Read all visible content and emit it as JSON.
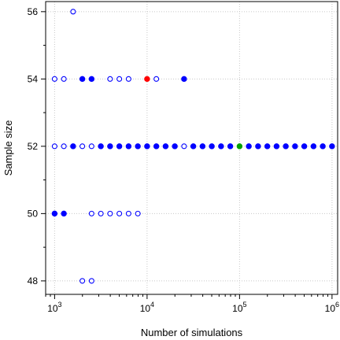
{
  "chart_data": {
    "type": "scatter",
    "title": "",
    "xlabel": "Number of simulations",
    "ylabel": "Sample size",
    "x_scale": "log10",
    "xlim": [
      800,
      1150000
    ],
    "ylim": [
      47.6,
      56.3
    ],
    "grid": true,
    "x_ticks": [
      {
        "value": 1000,
        "base": "10",
        "exp": "3"
      },
      {
        "value": 10000,
        "base": "10",
        "exp": "4"
      },
      {
        "value": 100000,
        "base": "10",
        "exp": "5"
      },
      {
        "value": 1000000,
        "base": "10",
        "exp": "6"
      }
    ],
    "y_ticks": [
      48,
      50,
      52,
      54,
      56
    ],
    "colors": {
      "blue": "#0000ff",
      "red": "#ff0000",
      "green": "#00a000"
    },
    "points": [
      {
        "x": 1585,
        "y": 56,
        "style": "open",
        "color": "#0000ff"
      },
      {
        "x": 1000,
        "y": 54,
        "style": "open",
        "color": "#0000ff"
      },
      {
        "x": 1259,
        "y": 54,
        "style": "open",
        "color": "#0000ff"
      },
      {
        "x": 1995,
        "y": 54,
        "style": "filled",
        "color": "#0000ff"
      },
      {
        "x": 2512,
        "y": 54,
        "style": "filled",
        "color": "#0000ff"
      },
      {
        "x": 3981,
        "y": 54,
        "style": "open",
        "color": "#0000ff"
      },
      {
        "x": 5012,
        "y": 54,
        "style": "open",
        "color": "#0000ff"
      },
      {
        "x": 6310,
        "y": 54,
        "style": "open",
        "color": "#0000ff"
      },
      {
        "x": 10000,
        "y": 54,
        "style": "filled",
        "color": "#ff0000"
      },
      {
        "x": 12589,
        "y": 54,
        "style": "open",
        "color": "#0000ff"
      },
      {
        "x": 25119,
        "y": 54,
        "style": "filled",
        "color": "#0000ff"
      },
      {
        "x": 1000,
        "y": 52,
        "style": "open",
        "color": "#0000ff"
      },
      {
        "x": 1259,
        "y": 52,
        "style": "open",
        "color": "#0000ff"
      },
      {
        "x": 1585,
        "y": 52,
        "style": "filled",
        "color": "#0000ff"
      },
      {
        "x": 1995,
        "y": 52,
        "style": "open",
        "color": "#0000ff"
      },
      {
        "x": 2512,
        "y": 52,
        "style": "open",
        "color": "#0000ff"
      },
      {
        "x": 3162,
        "y": 52,
        "style": "filled",
        "color": "#0000ff"
      },
      {
        "x": 3981,
        "y": 52,
        "style": "filled",
        "color": "#0000ff"
      },
      {
        "x": 5012,
        "y": 52,
        "style": "filled",
        "color": "#0000ff"
      },
      {
        "x": 6310,
        "y": 52,
        "style": "filled",
        "color": "#0000ff"
      },
      {
        "x": 7943,
        "y": 52,
        "style": "filled",
        "color": "#0000ff"
      },
      {
        "x": 10000,
        "y": 52,
        "style": "filled",
        "color": "#0000ff"
      },
      {
        "x": 12589,
        "y": 52,
        "style": "filled",
        "color": "#0000ff"
      },
      {
        "x": 15849,
        "y": 52,
        "style": "filled",
        "color": "#0000ff"
      },
      {
        "x": 19953,
        "y": 52,
        "style": "filled",
        "color": "#0000ff"
      },
      {
        "x": 25119,
        "y": 52,
        "style": "open",
        "color": "#0000ff"
      },
      {
        "x": 31623,
        "y": 52,
        "style": "filled",
        "color": "#0000ff"
      },
      {
        "x": 39811,
        "y": 52,
        "style": "filled",
        "color": "#0000ff"
      },
      {
        "x": 50119,
        "y": 52,
        "style": "filled",
        "color": "#0000ff"
      },
      {
        "x": 63096,
        "y": 52,
        "style": "filled",
        "color": "#0000ff"
      },
      {
        "x": 79433,
        "y": 52,
        "style": "filled",
        "color": "#0000ff"
      },
      {
        "x": 100000,
        "y": 52,
        "style": "filled",
        "color": "#00a000"
      },
      {
        "x": 125893,
        "y": 52,
        "style": "filled",
        "color": "#0000ff"
      },
      {
        "x": 158489,
        "y": 52,
        "style": "filled",
        "color": "#0000ff"
      },
      {
        "x": 199526,
        "y": 52,
        "style": "filled",
        "color": "#0000ff"
      },
      {
        "x": 251189,
        "y": 52,
        "style": "filled",
        "color": "#0000ff"
      },
      {
        "x": 316228,
        "y": 52,
        "style": "filled",
        "color": "#0000ff"
      },
      {
        "x": 398107,
        "y": 52,
        "style": "filled",
        "color": "#0000ff"
      },
      {
        "x": 501187,
        "y": 52,
        "style": "filled",
        "color": "#0000ff"
      },
      {
        "x": 630957,
        "y": 52,
        "style": "filled",
        "color": "#0000ff"
      },
      {
        "x": 794328,
        "y": 52,
        "style": "filled",
        "color": "#0000ff"
      },
      {
        "x": 1000000,
        "y": 52,
        "style": "filled",
        "color": "#0000ff"
      },
      {
        "x": 1000,
        "y": 50,
        "style": "filled",
        "color": "#0000ff"
      },
      {
        "x": 1259,
        "y": 50,
        "style": "filled",
        "color": "#0000ff"
      },
      {
        "x": 2512,
        "y": 50,
        "style": "open",
        "color": "#0000ff"
      },
      {
        "x": 3162,
        "y": 50,
        "style": "open",
        "color": "#0000ff"
      },
      {
        "x": 3981,
        "y": 50,
        "style": "open",
        "color": "#0000ff"
      },
      {
        "x": 5012,
        "y": 50,
        "style": "open",
        "color": "#0000ff"
      },
      {
        "x": 6310,
        "y": 50,
        "style": "open",
        "color": "#0000ff"
      },
      {
        "x": 7943,
        "y": 50,
        "style": "open",
        "color": "#0000ff"
      },
      {
        "x": 1995,
        "y": 48,
        "style": "open",
        "color": "#0000ff"
      },
      {
        "x": 2512,
        "y": 48,
        "style": "open",
        "color": "#0000ff"
      }
    ]
  }
}
